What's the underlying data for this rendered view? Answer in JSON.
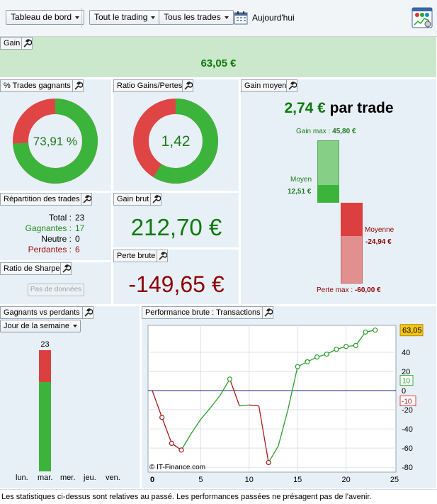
{
  "toolbar": {
    "dashboard_label": "Tableau de bord",
    "trading_label": "Tout le trading",
    "trades_label": "Tous les trades",
    "today_label": "Aujourd'hui"
  },
  "gain": {
    "title": "Gain",
    "value": "63,05 €"
  },
  "win_pct": {
    "title": "% Trades gagnants",
    "value_label": "73,91 %",
    "fraction": 0.7391
  },
  "ratio": {
    "title": "Ratio Gains/Pertes",
    "value_label": "1,42",
    "fraction": 0.587
  },
  "avg_gain": {
    "title": "Gain moyen",
    "value": "2,74 €",
    "suffix": "par trade",
    "max_gain_label": "Gain max :",
    "max_gain_value": "45,80 €",
    "avg_label": "Moyen",
    "avg_value": "12,51 €",
    "avg_loss_label": "Moyenne",
    "avg_loss_value": "-24,94 €",
    "max_loss_label": "Perte max :",
    "max_loss_value": "-60,00 €"
  },
  "distribution": {
    "title": "Répartition des trades",
    "rows": [
      {
        "label": "Total :",
        "value": "23",
        "color": "#000000"
      },
      {
        "label": "Gagnantes :",
        "value": "17",
        "color": "#1c8c1c"
      },
      {
        "label": "Neutre :",
        "value": "0",
        "color": "#000000"
      },
      {
        "label": "Perdantes :",
        "value": "6",
        "color": "#a01010"
      }
    ]
  },
  "gross_gain": {
    "title": "Gain brut",
    "value": "212,70 €"
  },
  "gross_loss": {
    "title": "Perte brute",
    "value": "-149,65 €"
  },
  "sharpe": {
    "title": "Ratio de Sharpe",
    "button_label": "Pas de données"
  },
  "winners_losers": {
    "title": "Gagnants vs perdants",
    "selector_label": "Jour de la semaine",
    "bar_total_label": "23",
    "days": [
      "lun.",
      "mar.",
      "mer.",
      "jeu.",
      "ven."
    ]
  },
  "chart_data": {
    "type": "line",
    "title": "Performance brute : Transactions",
    "watermark": "© IT-Finance.com",
    "x": [
      0,
      1,
      2,
      3,
      4,
      5,
      6,
      7,
      8,
      9,
      10,
      11,
      12,
      13,
      14,
      15,
      16,
      17,
      18,
      19,
      20,
      21,
      22,
      23
    ],
    "values": [
      0,
      -28,
      -55,
      -62,
      -45,
      -30,
      -18,
      -5,
      12,
      -16,
      -15,
      -16,
      -75,
      -58,
      -20,
      25,
      30,
      35,
      38,
      43,
      46,
      47,
      61,
      63.05
    ],
    "markers": [
      1,
      2,
      3,
      8,
      12,
      15,
      16,
      17,
      18,
      19,
      20,
      21,
      22,
      23
    ],
    "xlim": [
      0,
      25
    ],
    "ylim": [
      -85,
      68
    ],
    "xticks": [
      0,
      5,
      10,
      15,
      20,
      25
    ],
    "yticks": [
      40,
      20,
      0,
      -20,
      -40,
      -60,
      -80
    ],
    "last_value_label": "63,05",
    "ref_up_label": "10",
    "ref_down_label": "-10",
    "colors": {
      "up": "#2e9e2e",
      "down": "#a51b1b",
      "zero": "#1a237e"
    }
  }
}
